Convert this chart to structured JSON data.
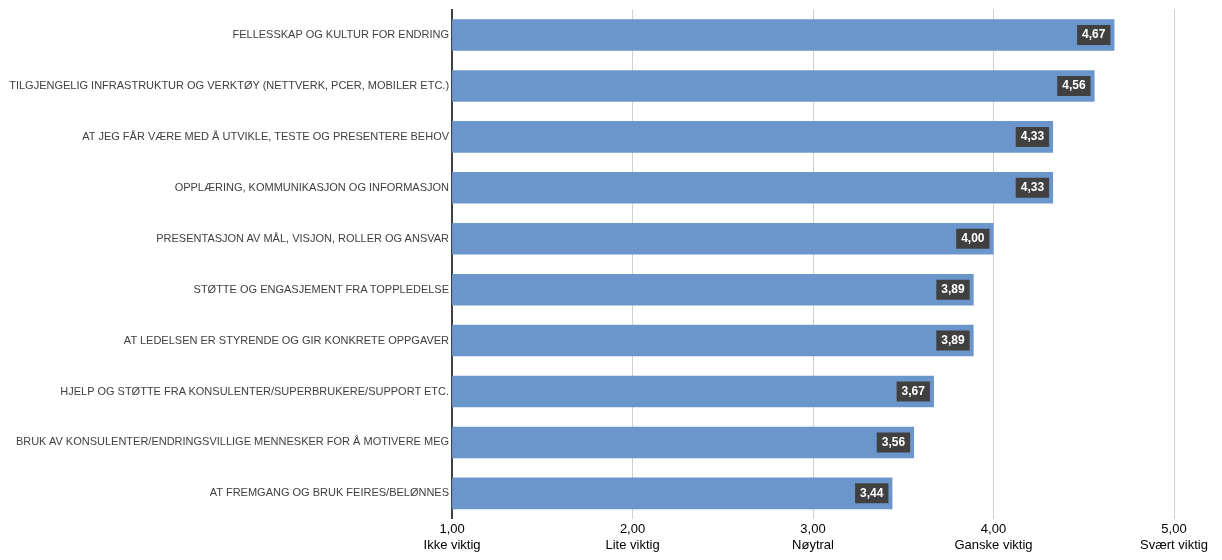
{
  "chart_data": {
    "type": "bar",
    "orientation": "horizontal",
    "categories": [
      "FELLESSKAP OG KULTUR FOR ENDRING",
      "TILGJENGELIG INFRASTRUKTUR OG VERKTØY (NETTVERK, PCER, MOBILER ETC.)",
      "AT JEG FÅR VÆRE MED Å UTVIKLE, TESTE OG PRESENTERE BEHOV",
      "OPPLÆRING, KOMMUNIKASJON OG INFORMASJON",
      "PRESENTASJON AV MÅL, VISJON, ROLLER OG ANSVAR",
      "STØTTE OG ENGASJEMENT FRA TOPPLEDELSE",
      "AT LEDELSEN ER STYRENDE OG GIR KONKRETE OPPGAVER",
      "HJELP OG STØTTE FRA KONSULENTER/SUPERBRUKERE/SUPPORT ETC.",
      "BRUK AV KONSULENTER/ENDRINGSVILLIGE MENNESKER FOR Å MOTIVERE MEG",
      "AT FREMGANG OG BRUK FEIRES/BELØNNES"
    ],
    "values": [
      4.67,
      4.56,
      4.33,
      4.33,
      4.0,
      3.89,
      3.89,
      3.67,
      3.56,
      3.44
    ],
    "value_labels": [
      "4,67",
      "4,56",
      "4,33",
      "4,33",
      "4,00",
      "3,89",
      "3,89",
      "3,67",
      "3,56",
      "3,44"
    ],
    "color": "#6a96cc",
    "xlim": [
      1,
      5
    ],
    "xticks": [
      {
        "value": 1,
        "label": "1,00\nIkke viktig"
      },
      {
        "value": 2,
        "label": "2,00\nLite viktig"
      },
      {
        "value": 3,
        "label": "3,00\nNøytral"
      },
      {
        "value": 4,
        "label": "4,00\nGanske viktig"
      },
      {
        "value": 5,
        "label": "5,00\nSvært viktig"
      }
    ],
    "grid": "x"
  }
}
